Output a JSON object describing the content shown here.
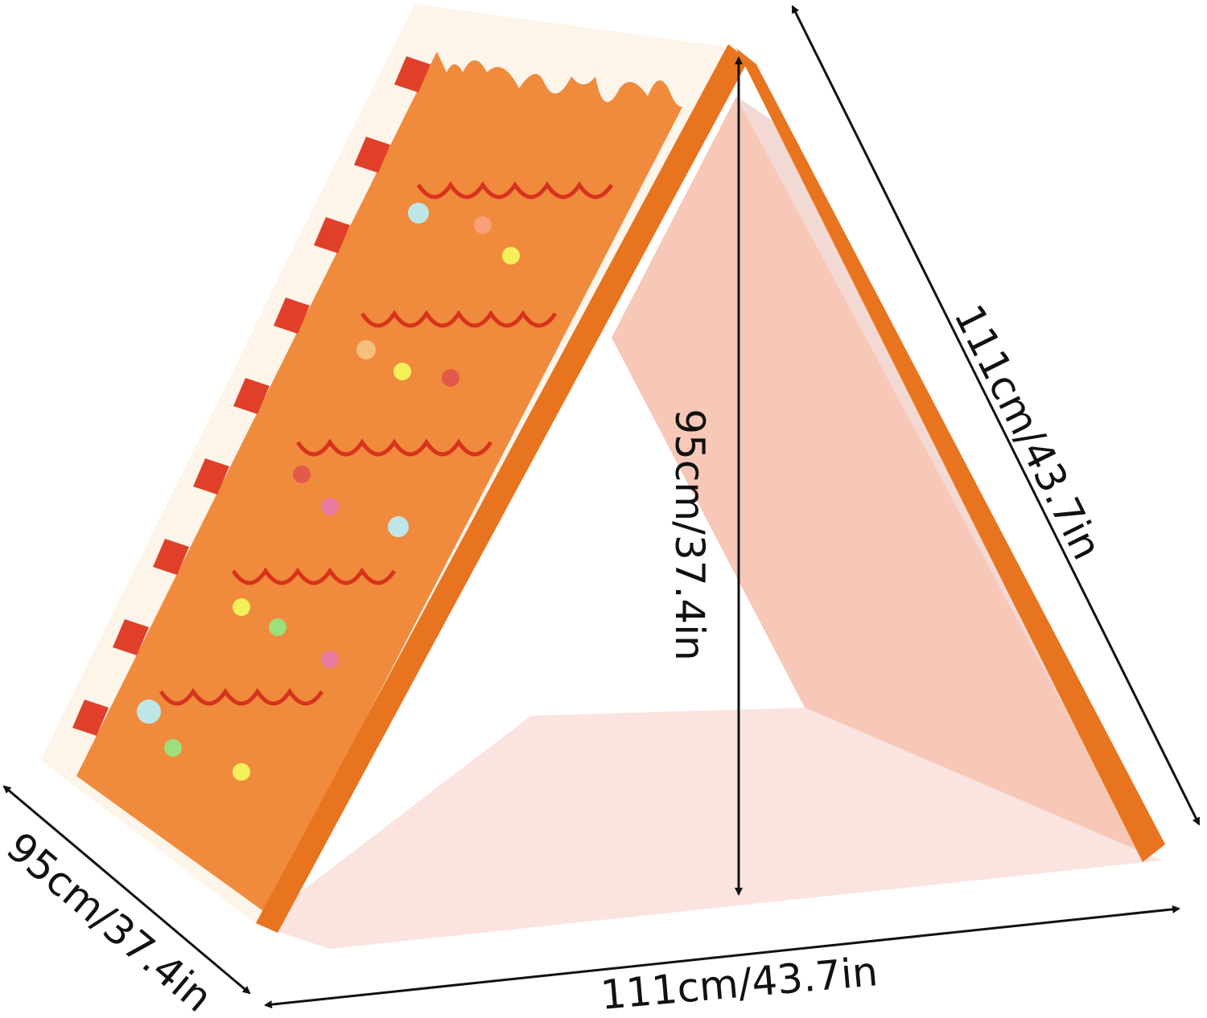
{
  "product": {
    "name": "",
    "colors": {
      "orange": "#f08a3c",
      "edge": "#e8741f",
      "pink": "#f7c8b8",
      "floor": "#fbe3df",
      "red": "#e0402a"
    }
  },
  "dimensions": {
    "height": "95cm/37.4in",
    "side_length": "111cm/43.7in",
    "width": "111cm/43.7in",
    "depth": "95cm/37.4in"
  }
}
